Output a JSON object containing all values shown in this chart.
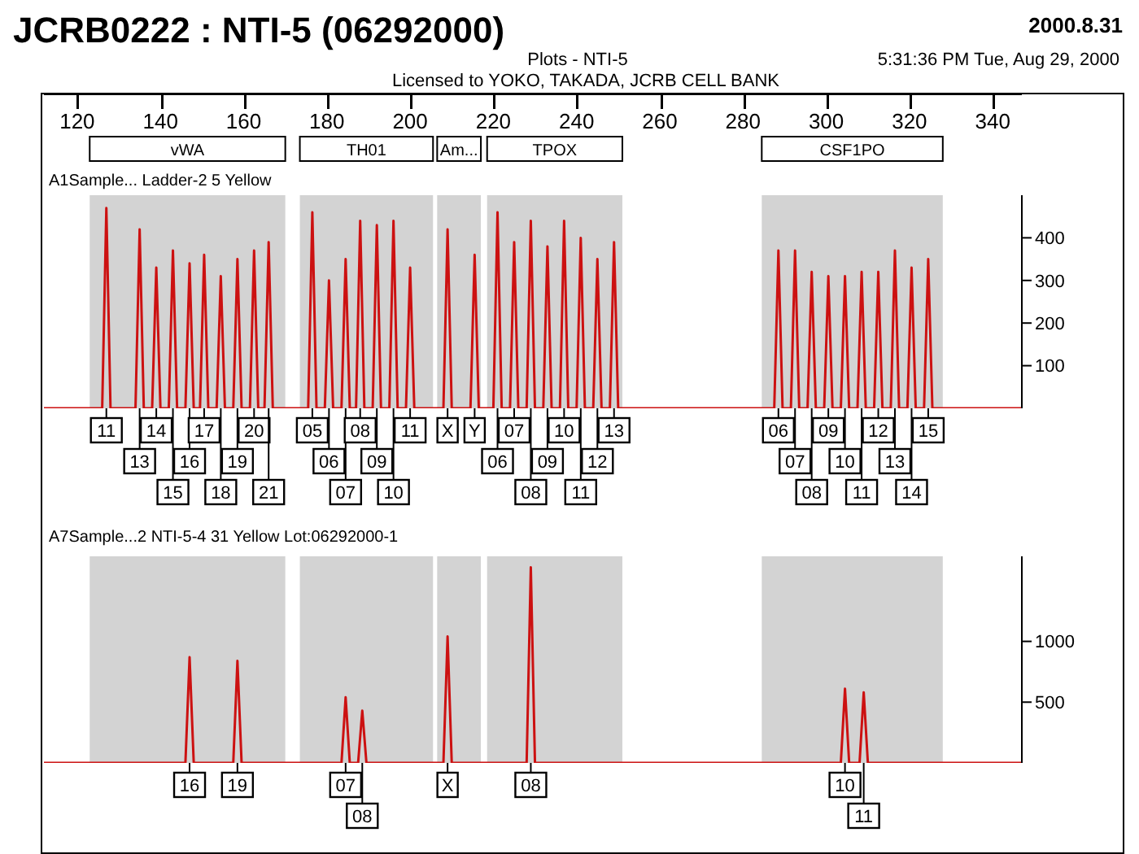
{
  "chart_data": [
    {
      "type": "line",
      "title": "JCRB0222 : NTI-5 (06292000)",
      "subtitle": "Plots - NTI-5",
      "xlim": [
        112,
        347
      ],
      "ylim": [
        0,
        500
      ],
      "yticks": [
        100,
        200,
        300,
        400
      ],
      "xticks": [
        120,
        140,
        160,
        180,
        200,
        220,
        240,
        260,
        280,
        300,
        320,
        340
      ],
      "bands": [
        {
          "axis": "x",
          "from": 123,
          "to": 170,
          "label": "vWA",
          "color": "#d3d3d3"
        },
        {
          "axis": "x",
          "from": 173.5,
          "to": 205.5,
          "label": "TH01",
          "color": "#d3d3d3"
        },
        {
          "axis": "x",
          "from": 206.5,
          "to": 217,
          "label": "Am...",
          "color": "#d3d3d3"
        },
        {
          "axis": "x",
          "from": 218.5,
          "to": 251,
          "label": "TPOX",
          "color": "#d3d3d3"
        },
        {
          "axis": "x",
          "from": 284.5,
          "to": 328,
          "label": "CSF1PO",
          "color": "#d3d3d3"
        }
      ],
      "series": [
        {
          "color": "#cc1111",
          "x": [
            112,
            126,
            127,
            128,
            134,
            135,
            136,
            138,
            139,
            140,
            142,
            143,
            144,
            146,
            147,
            148,
            149.5,
            150.5,
            151.5,
            153.5,
            154.5,
            155.5,
            157.5,
            158.5,
            159.5,
            161.5,
            162.5,
            163.5,
            165,
            166,
            167,
            175.5,
            176.5,
            177.5,
            179.5,
            180.5,
            181.5,
            183.5,
            184.5,
            185.5,
            187,
            188,
            189,
            191,
            192,
            193,
            195,
            196,
            197,
            199,
            200,
            201,
            208,
            209,
            210,
            214.5,
            215.5,
            216.5,
            220,
            221,
            222,
            224,
            225,
            226,
            228,
            229,
            230,
            232,
            233,
            234,
            236,
            237,
            238,
            240,
            241,
            242,
            244,
            245,
            246,
            248,
            249,
            250,
            287.5,
            288.5,
            289.5,
            291.5,
            292.5,
            293.5,
            295.5,
            296.5,
            297.5,
            299.5,
            300.5,
            301.5,
            303.5,
            304.5,
            305.5,
            307.5,
            308.5,
            309.5,
            311.5,
            312.5,
            313.5,
            315.5,
            316.5,
            317.5,
            319.5,
            320.5,
            321.5,
            323.5,
            324.5,
            325.5,
            347
          ],
          "values": [
            0,
            0,
            470,
            0,
            0,
            420,
            0,
            0,
            330,
            0,
            0,
            370,
            0,
            0,
            340,
            0,
            0,
            360,
            0,
            0,
            310,
            0,
            0,
            350,
            0,
            0,
            370,
            0,
            0,
            390,
            0,
            0,
            460,
            0,
            0,
            300,
            0,
            0,
            350,
            0,
            0,
            440,
            0,
            0,
            430,
            0,
            0,
            440,
            0,
            0,
            330,
            0,
            0,
            420,
            0,
            0,
            360,
            0,
            0,
            460,
            0,
            0,
            390,
            0,
            0,
            440,
            0,
            0,
            380,
            0,
            0,
            440,
            0,
            0,
            400,
            0,
            0,
            350,
            0,
            0,
            390,
            0,
            0,
            370,
            0,
            0,
            370,
            0,
            0,
            320,
            0,
            0,
            310,
            0,
            0,
            310,
            0,
            0,
            320,
            0,
            0,
            320,
            0,
            0,
            370,
            0,
            0,
            330,
            0,
            0,
            350,
            0,
            0
          ]
        }
      ],
      "annotations": [
        "2000.8.31",
        "5:31:36 PM Tue, Aug 29, 2000",
        "Licensed to YOKO, TAKADA, JCRB CELL BANK",
        "A1Sample... Ladder-2 5 Yellow",
        {
          "text": "11",
          "x": 127,
          "y": 0
        },
        {
          "text": "13",
          "x": 135,
          "y": 0
        },
        {
          "text": "14",
          "x": 139,
          "y": 0
        },
        {
          "text": "15",
          "x": 143,
          "y": 0
        },
        {
          "text": "16",
          "x": 147,
          "y": 0
        },
        {
          "text": "17",
          "x": 150.5,
          "y": 0
        },
        {
          "text": "18",
          "x": 154.5,
          "y": 0
        },
        {
          "text": "19",
          "x": 158.5,
          "y": 0
        },
        {
          "text": "20",
          "x": 162.5,
          "y": 0
        },
        {
          "text": "21",
          "x": 166,
          "y": 0
        },
        {
          "text": "05",
          "x": 176.5,
          "y": 0
        },
        {
          "text": "06",
          "x": 180.5,
          "y": 0
        },
        {
          "text": "07",
          "x": 184.5,
          "y": 0
        },
        {
          "text": "08",
          "x": 188,
          "y": 0
        },
        {
          "text": "09",
          "x": 192,
          "y": 0
        },
        {
          "text": "10",
          "x": 196,
          "y": 0
        },
        {
          "text": "11",
          "x": 200,
          "y": 0
        },
        {
          "text": "X",
          "x": 209,
          "y": 0
        },
        {
          "text": "Y",
          "x": 215.5,
          "y": 0
        },
        {
          "text": "06",
          "x": 221,
          "y": 0
        },
        {
          "text": "07",
          "x": 225,
          "y": 0
        },
        {
          "text": "08",
          "x": 229,
          "y": 0
        },
        {
          "text": "09",
          "x": 233,
          "y": 0
        },
        {
          "text": "10",
          "x": 237,
          "y": 0
        },
        {
          "text": "11",
          "x": 241,
          "y": 0
        },
        {
          "text": "12",
          "x": 245,
          "y": 0
        },
        {
          "text": "13",
          "x": 249,
          "y": 0
        },
        {
          "text": "06",
          "x": 288.5,
          "y": 0
        },
        {
          "text": "07",
          "x": 292.5,
          "y": 0
        },
        {
          "text": "08",
          "x": 296.5,
          "y": 0
        },
        {
          "text": "09",
          "x": 300.5,
          "y": 0
        },
        {
          "text": "10",
          "x": 304.5,
          "y": 0
        },
        {
          "text": "11",
          "x": 308.5,
          "y": 0
        },
        {
          "text": "12",
          "x": 312.5,
          "y": 0
        },
        {
          "text": "13",
          "x": 316.5,
          "y": 0
        },
        {
          "text": "14",
          "x": 320.5,
          "y": 0
        },
        {
          "text": "15",
          "x": 324.5,
          "y": 0
        }
      ]
    },
    {
      "type": "line",
      "xlim": [
        112,
        347
      ],
      "ylim": [
        0,
        1700
      ],
      "yticks": [
        500,
        1000
      ],
      "tick_labels": "y",
      "bands": [
        {
          "axis": "x",
          "from": 123,
          "to": 170,
          "color": "#d3d3d3"
        },
        {
          "axis": "x",
          "from": 173.5,
          "to": 205.5,
          "color": "#d3d3d3"
        },
        {
          "axis": "x",
          "from": 206.5,
          "to": 217,
          "color": "#d3d3d3"
        },
        {
          "axis": "x",
          "from": 218.5,
          "to": 251,
          "color": "#d3d3d3"
        },
        {
          "axis": "x",
          "from": 284.5,
          "to": 328,
          "color": "#d3d3d3"
        }
      ],
      "series": [
        {
          "color": "#cc1111",
          "x": [
            112,
            146,
            147,
            148,
            157.5,
            158.5,
            159.5,
            183.5,
            184.5,
            185.5,
            187.5,
            188.5,
            189.5,
            208,
            209,
            210,
            228,
            229,
            230,
            303.5,
            304.5,
            305.5,
            308,
            309,
            310,
            347
          ],
          "values": [
            0,
            0,
            870,
            0,
            0,
            840,
            0,
            0,
            540,
            0,
            0,
            430,
            0,
            0,
            1040,
            0,
            0,
            1610,
            0,
            0,
            610,
            0,
            0,
            580,
            0,
            0
          ]
        }
      ],
      "annotations": [
        "A7Sample...2 NTI-5-4 31 Yellow Lot:06292000-1",
        {
          "text": "16",
          "x": 147,
          "y": 0
        },
        {
          "text": "19",
          "x": 158.5,
          "y": 0
        },
        {
          "text": "07",
          "x": 184.5,
          "y": 0
        },
        {
          "text": "08",
          "x": 188.5,
          "y": 0
        },
        {
          "text": "X",
          "x": 209,
          "y": 0
        },
        {
          "text": "08",
          "x": 229,
          "y": 0
        },
        {
          "text": "10",
          "x": 304.5,
          "y": 0
        },
        {
          "text": "11",
          "x": 309,
          "y": 0
        }
      ]
    }
  ]
}
